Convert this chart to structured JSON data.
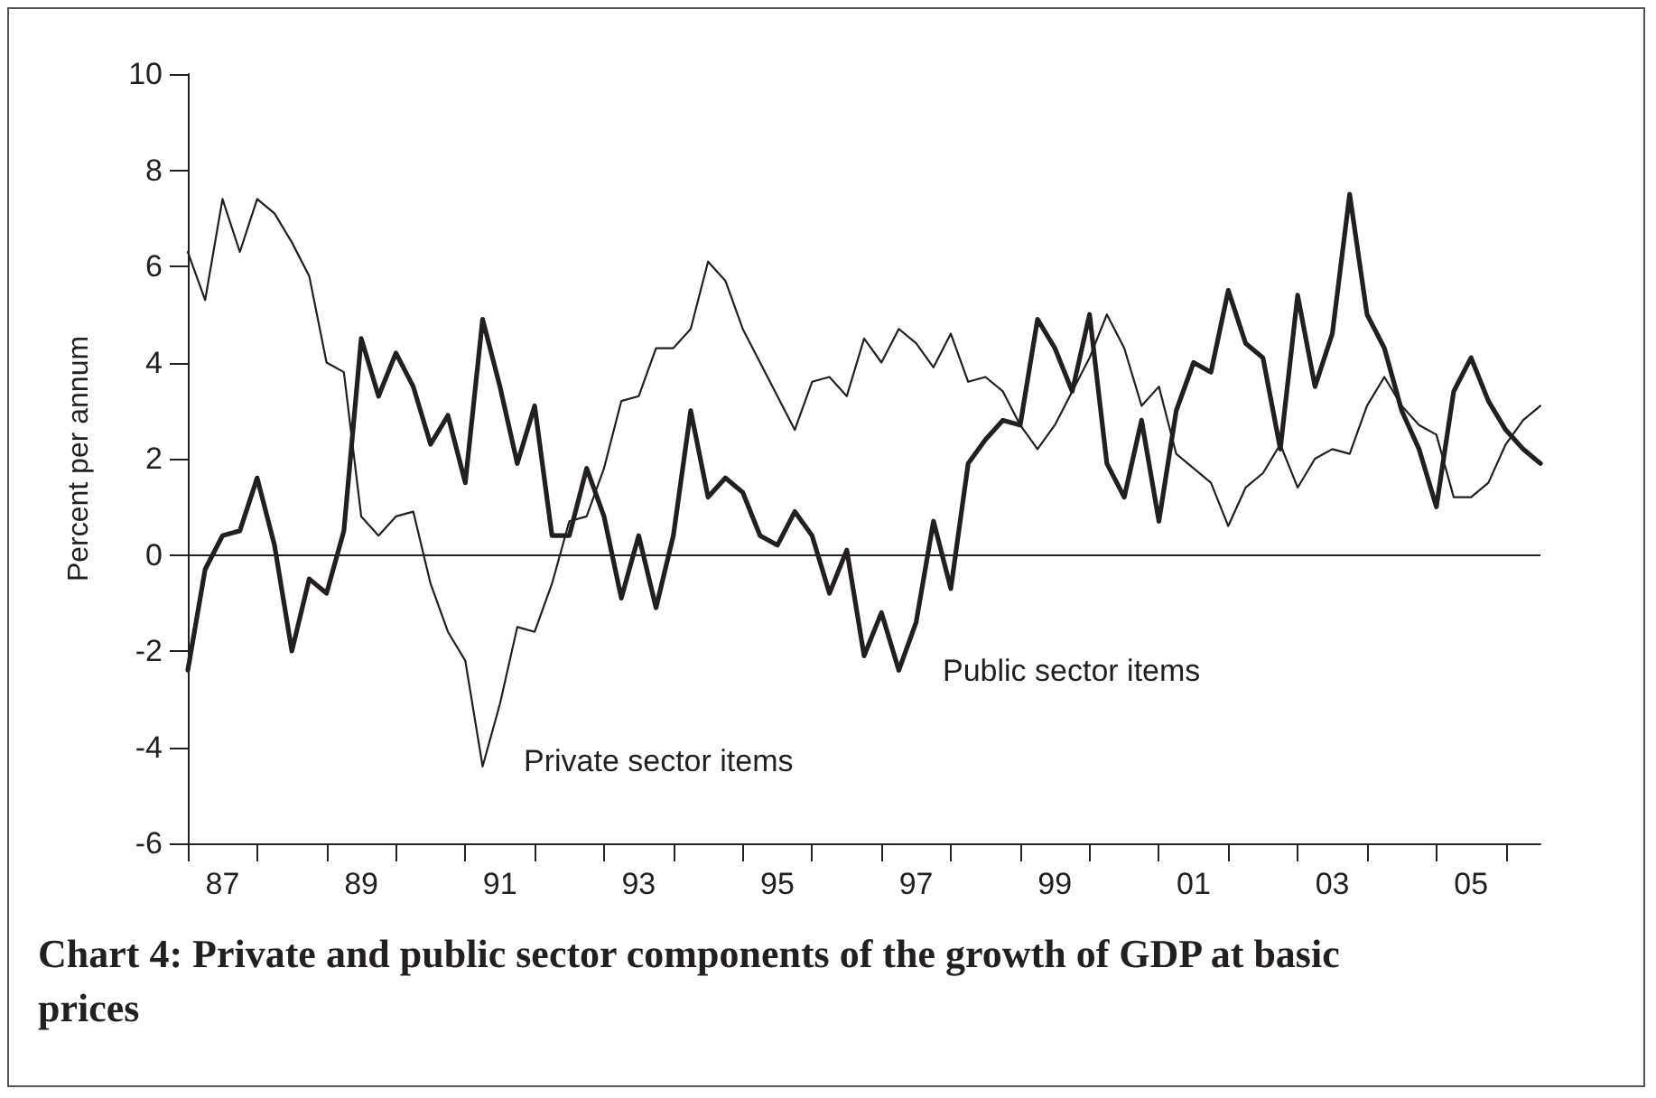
{
  "chart_data": {
    "type": "line",
    "title": "Chart 4: Private and public sector components of the growth of GDP at basic prices",
    "ylabel": "Percent per annum",
    "categories": [
      null,
      null,
      "87",
      null,
      null,
      null,
      null,
      null,
      null,
      null,
      "89",
      null,
      null,
      null,
      null,
      null,
      null,
      null,
      "91",
      null,
      null,
      null,
      null,
      null,
      null,
      null,
      "93",
      null,
      null,
      null,
      null,
      null,
      null,
      null,
      "95",
      null,
      null,
      null,
      null,
      null,
      null,
      null,
      "97",
      null,
      null,
      null,
      null,
      null,
      null,
      null,
      "99",
      null,
      null,
      null,
      null,
      null,
      null,
      null,
      "01",
      null,
      null,
      null,
      null,
      null,
      null,
      null,
      "03",
      null,
      null,
      null,
      null,
      null,
      null,
      null,
      "05",
      null,
      null,
      null,
      null
    ],
    "series": [
      {
        "name": "Public sector items",
        "color": "#231f20",
        "values": [
          -2.4,
          -0.3,
          0.4,
          0.5,
          1.6,
          0.2,
          -2.0,
          -0.5,
          -0.8,
          0.5,
          4.5,
          3.3,
          4.2,
          3.5,
          2.3,
          2.9,
          1.5,
          4.9,
          3.5,
          1.9,
          3.1,
          0.4,
          0.4,
          1.8,
          0.8,
          -0.9,
          0.4,
          -1.1,
          0.4,
          3.0,
          1.2,
          1.6,
          1.3,
          0.4,
          0.2,
          0.9,
          0.4,
          -0.8,
          0.1,
          -2.1,
          -1.2,
          -2.4,
          -1.4,
          0.7,
          -0.7,
          1.9,
          2.4,
          2.8,
          2.7,
          4.9,
          4.3,
          3.4,
          5.0,
          1.9,
          1.2,
          2.8,
          0.7,
          3.0,
          4.0,
          3.8,
          5.5,
          4.4,
          4.1,
          2.2,
          5.4,
          3.5,
          4.6,
          7.5,
          5.0,
          4.3,
          3.0,
          2.2,
          1.0,
          3.4,
          4.1,
          3.2,
          2.6,
          2.2,
          1.9
        ]
      },
      {
        "name": "Private sector items",
        "color": "#231f20",
        "values": [
          6.3,
          5.3,
          7.4,
          6.3,
          7.4,
          7.1,
          6.5,
          5.8,
          4.0,
          3.8,
          0.8,
          0.4,
          0.8,
          0.9,
          -0.6,
          -1.6,
          -2.2,
          -4.4,
          -3.1,
          -1.5,
          -1.6,
          -0.6,
          0.7,
          0.8,
          1.8,
          3.2,
          3.3,
          4.3,
          4.3,
          4.7,
          6.1,
          5.7,
          4.7,
          4.0,
          3.3,
          2.6,
          3.6,
          3.7,
          3.3,
          4.5,
          4.0,
          4.7,
          4.4,
          3.9,
          4.6,
          3.6,
          3.7,
          3.4,
          2.7,
          2.2,
          2.7,
          3.4,
          4.1,
          5.0,
          4.3,
          3.1,
          3.5,
          2.1,
          1.8,
          1.5,
          0.6,
          1.4,
          1.7,
          2.3,
          1.4,
          2.0,
          2.2,
          2.1,
          3.1,
          3.7,
          3.1,
          2.7,
          2.5,
          1.2,
          1.2,
          1.5,
          2.3,
          2.8,
          3.1
        ]
      }
    ],
    "ylim": [
      -6,
      10
    ],
    "yticks": [
      -6,
      -4,
      -2,
      0,
      2,
      4,
      6,
      8,
      10
    ],
    "ref_lines": [
      {
        "axis": "y",
        "value": 0,
        "color": "#231f20"
      }
    ],
    "grid": false,
    "legend": false,
    "marker": "none",
    "line_style": "solid"
  }
}
